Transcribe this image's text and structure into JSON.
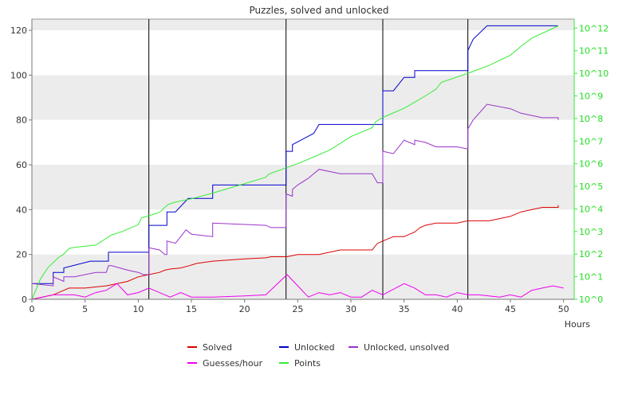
{
  "chart_data": {
    "type": "line",
    "title": "Puzzles, solved and unlocked",
    "xlabel": "Hours",
    "xlim": [
      0,
      51
    ],
    "ylim": [
      0,
      125
    ],
    "y2lim_log10": [
      0,
      12.4
    ],
    "x_ticks": [
      0,
      5,
      10,
      15,
      20,
      25,
      30,
      35,
      40,
      45,
      50
    ],
    "y_ticks": [
      0,
      20,
      40,
      60,
      80,
      100,
      120
    ],
    "y2_ticks": [
      "10^0",
      "10^1",
      "10^2",
      "10^3",
      "10^4",
      "10^5",
      "10^6",
      "10^7",
      "10^8",
      "10^9",
      "10^10",
      "10^11",
      "10^12"
    ],
    "vertical_markers": [
      11,
      23.9,
      33,
      41
    ],
    "grid": "horizontal bands",
    "legend_position": "bottom",
    "series": [
      {
        "name": "Solved",
        "color": "#dd0000",
        "axis": "left",
        "points": [
          [
            0,
            0
          ],
          [
            2,
            2
          ],
          [
            3,
            4
          ],
          [
            3.5,
            5
          ],
          [
            5,
            5
          ],
          [
            7,
            6
          ],
          [
            9,
            8
          ],
          [
            10,
            10
          ],
          [
            11,
            11
          ],
          [
            12,
            12
          ],
          [
            12.5,
            13
          ],
          [
            13,
            13.5
          ],
          [
            14,
            14
          ],
          [
            14.8,
            15
          ],
          [
            15.5,
            16
          ],
          [
            17,
            17
          ],
          [
            20,
            18
          ],
          [
            22,
            18.5
          ],
          [
            22.5,
            19
          ],
          [
            24,
            19
          ],
          [
            25,
            20
          ],
          [
            27,
            20
          ],
          [
            28,
            21
          ],
          [
            29,
            22
          ],
          [
            32,
            22
          ],
          [
            32.5,
            25
          ],
          [
            33,
            26
          ],
          [
            34,
            28
          ],
          [
            35,
            28
          ],
          [
            36,
            30
          ],
          [
            36.5,
            32
          ],
          [
            37,
            33
          ],
          [
            38,
            34
          ],
          [
            40,
            34
          ],
          [
            41,
            35
          ],
          [
            43,
            35
          ],
          [
            44,
            36
          ],
          [
            45,
            37
          ],
          [
            46,
            39
          ],
          [
            47,
            40
          ],
          [
            48,
            41
          ],
          [
            49.5,
            41
          ],
          [
            49.5,
            42
          ]
        ]
      },
      {
        "name": "Unlocked",
        "color": "#0000cc",
        "axis": "left",
        "points": [
          [
            0,
            7
          ],
          [
            2,
            7
          ],
          [
            2,
            12
          ],
          [
            3,
            12
          ],
          [
            3,
            14
          ],
          [
            5.5,
            17
          ],
          [
            7.2,
            17
          ],
          [
            7.2,
            21
          ],
          [
            11,
            21
          ],
          [
            11,
            33
          ],
          [
            12.7,
            33
          ],
          [
            12.7,
            39
          ],
          [
            13.5,
            39
          ],
          [
            14.7,
            45
          ],
          [
            17,
            45
          ],
          [
            17,
            51
          ],
          [
            23.9,
            51
          ],
          [
            23.9,
            66
          ],
          [
            24.5,
            66
          ],
          [
            24.5,
            69
          ],
          [
            26.5,
            74
          ],
          [
            27,
            78
          ],
          [
            33,
            78
          ],
          [
            33,
            93
          ],
          [
            34,
            93
          ],
          [
            35,
            99
          ],
          [
            36,
            99
          ],
          [
            36,
            102
          ],
          [
            41,
            102
          ],
          [
            41,
            111
          ],
          [
            41.5,
            116
          ],
          [
            42.8,
            122
          ],
          [
            49.5,
            122
          ]
        ]
      },
      {
        "name": "Unlocked, unsolved",
        "color": "#9933cc",
        "axis": "left",
        "points": [
          [
            0,
            7
          ],
          [
            2,
            6
          ],
          [
            2,
            10
          ],
          [
            3,
            8
          ],
          [
            3,
            10
          ],
          [
            4,
            10
          ],
          [
            6,
            12
          ],
          [
            7,
            12
          ],
          [
            7.2,
            15
          ],
          [
            7.5,
            15
          ],
          [
            9,
            13
          ],
          [
            10,
            12
          ],
          [
            10.5,
            11
          ],
          [
            11,
            11
          ],
          [
            11,
            23
          ],
          [
            12,
            22
          ],
          [
            12.5,
            20
          ],
          [
            12.7,
            20
          ],
          [
            12.7,
            26
          ],
          [
            13.5,
            25
          ],
          [
            14.5,
            31
          ],
          [
            15,
            29
          ],
          [
            17,
            28
          ],
          [
            17,
            34
          ],
          [
            22,
            33
          ],
          [
            22.5,
            32
          ],
          [
            23.9,
            32
          ],
          [
            23.9,
            47
          ],
          [
            24.5,
            46
          ],
          [
            24.5,
            49
          ],
          [
            25,
            51
          ],
          [
            26,
            54
          ],
          [
            27,
            58
          ],
          [
            29,
            56
          ],
          [
            32,
            56
          ],
          [
            32.5,
            52
          ],
          [
            33,
            52
          ],
          [
            33,
            66
          ],
          [
            34,
            65
          ],
          [
            35,
            71
          ],
          [
            36,
            69
          ],
          [
            36,
            71
          ],
          [
            37,
            70
          ],
          [
            38,
            68
          ],
          [
            40,
            68
          ],
          [
            41,
            67
          ],
          [
            41,
            76
          ],
          [
            41.5,
            80
          ],
          [
            42.8,
            87
          ],
          [
            45,
            85
          ],
          [
            46,
            83
          ],
          [
            48,
            81
          ],
          [
            49.5,
            81
          ],
          [
            49.5,
            80
          ]
        ]
      },
      {
        "name": "Guesses/hour",
        "color": "#ee00ee",
        "axis": "left",
        "points": [
          [
            0,
            0
          ],
          [
            1,
            1
          ],
          [
            2,
            2
          ],
          [
            3,
            2
          ],
          [
            4,
            2
          ],
          [
            5,
            1
          ],
          [
            6,
            3
          ],
          [
            7,
            4
          ],
          [
            8,
            7
          ],
          [
            9,
            2
          ],
          [
            10,
            3
          ],
          [
            11,
            5
          ],
          [
            12,
            3
          ],
          [
            13,
            1
          ],
          [
            14,
            3
          ],
          [
            15,
            1
          ],
          [
            17,
            1
          ],
          [
            20,
            1.5
          ],
          [
            22,
            2
          ],
          [
            24,
            11
          ],
          [
            26,
            1
          ],
          [
            27,
            3
          ],
          [
            28,
            2
          ],
          [
            29,
            3
          ],
          [
            30,
            1
          ],
          [
            31,
            1
          ],
          [
            32,
            4
          ],
          [
            33,
            2
          ],
          [
            35,
            7
          ],
          [
            36,
            5
          ],
          [
            37,
            2
          ],
          [
            38,
            2
          ],
          [
            39,
            1
          ],
          [
            40,
            3
          ],
          [
            41,
            2
          ],
          [
            42,
            2
          ],
          [
            44,
            1
          ],
          [
            45,
            2
          ],
          [
            46,
            1
          ],
          [
            47,
            4
          ],
          [
            48,
            5
          ],
          [
            49,
            6
          ],
          [
            50,
            5
          ]
        ]
      },
      {
        "name": "Points",
        "color": "#33ee33",
        "axis": "right_log",
        "points": [
          [
            0,
            0
          ],
          [
            0.8,
            0.9
          ],
          [
            1.5,
            1.4
          ],
          [
            2.5,
            1.85
          ],
          [
            3,
            2.0
          ],
          [
            3.5,
            2.25
          ],
          [
            4,
            2.3
          ],
          [
            6,
            2.4
          ],
          [
            7.5,
            2.85
          ],
          [
            8.5,
            3.0
          ],
          [
            10,
            3.3
          ],
          [
            10.3,
            3.6
          ],
          [
            11,
            3.7
          ],
          [
            12,
            3.85
          ],
          [
            12.8,
            4.2
          ],
          [
            13.5,
            4.3
          ],
          [
            15,
            4.45
          ],
          [
            17,
            4.7
          ],
          [
            22,
            5.4
          ],
          [
            22.3,
            5.55
          ],
          [
            25,
            6.0
          ],
          [
            28,
            6.6
          ],
          [
            30,
            7.2
          ],
          [
            32,
            7.6
          ],
          [
            32.3,
            7.85
          ],
          [
            33,
            8.05
          ],
          [
            35,
            8.45
          ],
          [
            37,
            9.0
          ],
          [
            38,
            9.3
          ],
          [
            38.5,
            9.6
          ],
          [
            41,
            10.0
          ],
          [
            43,
            10.35
          ],
          [
            45,
            10.8
          ],
          [
            46,
            11.2
          ],
          [
            47,
            11.55
          ],
          [
            49.5,
            12.1
          ]
        ]
      }
    ]
  }
}
